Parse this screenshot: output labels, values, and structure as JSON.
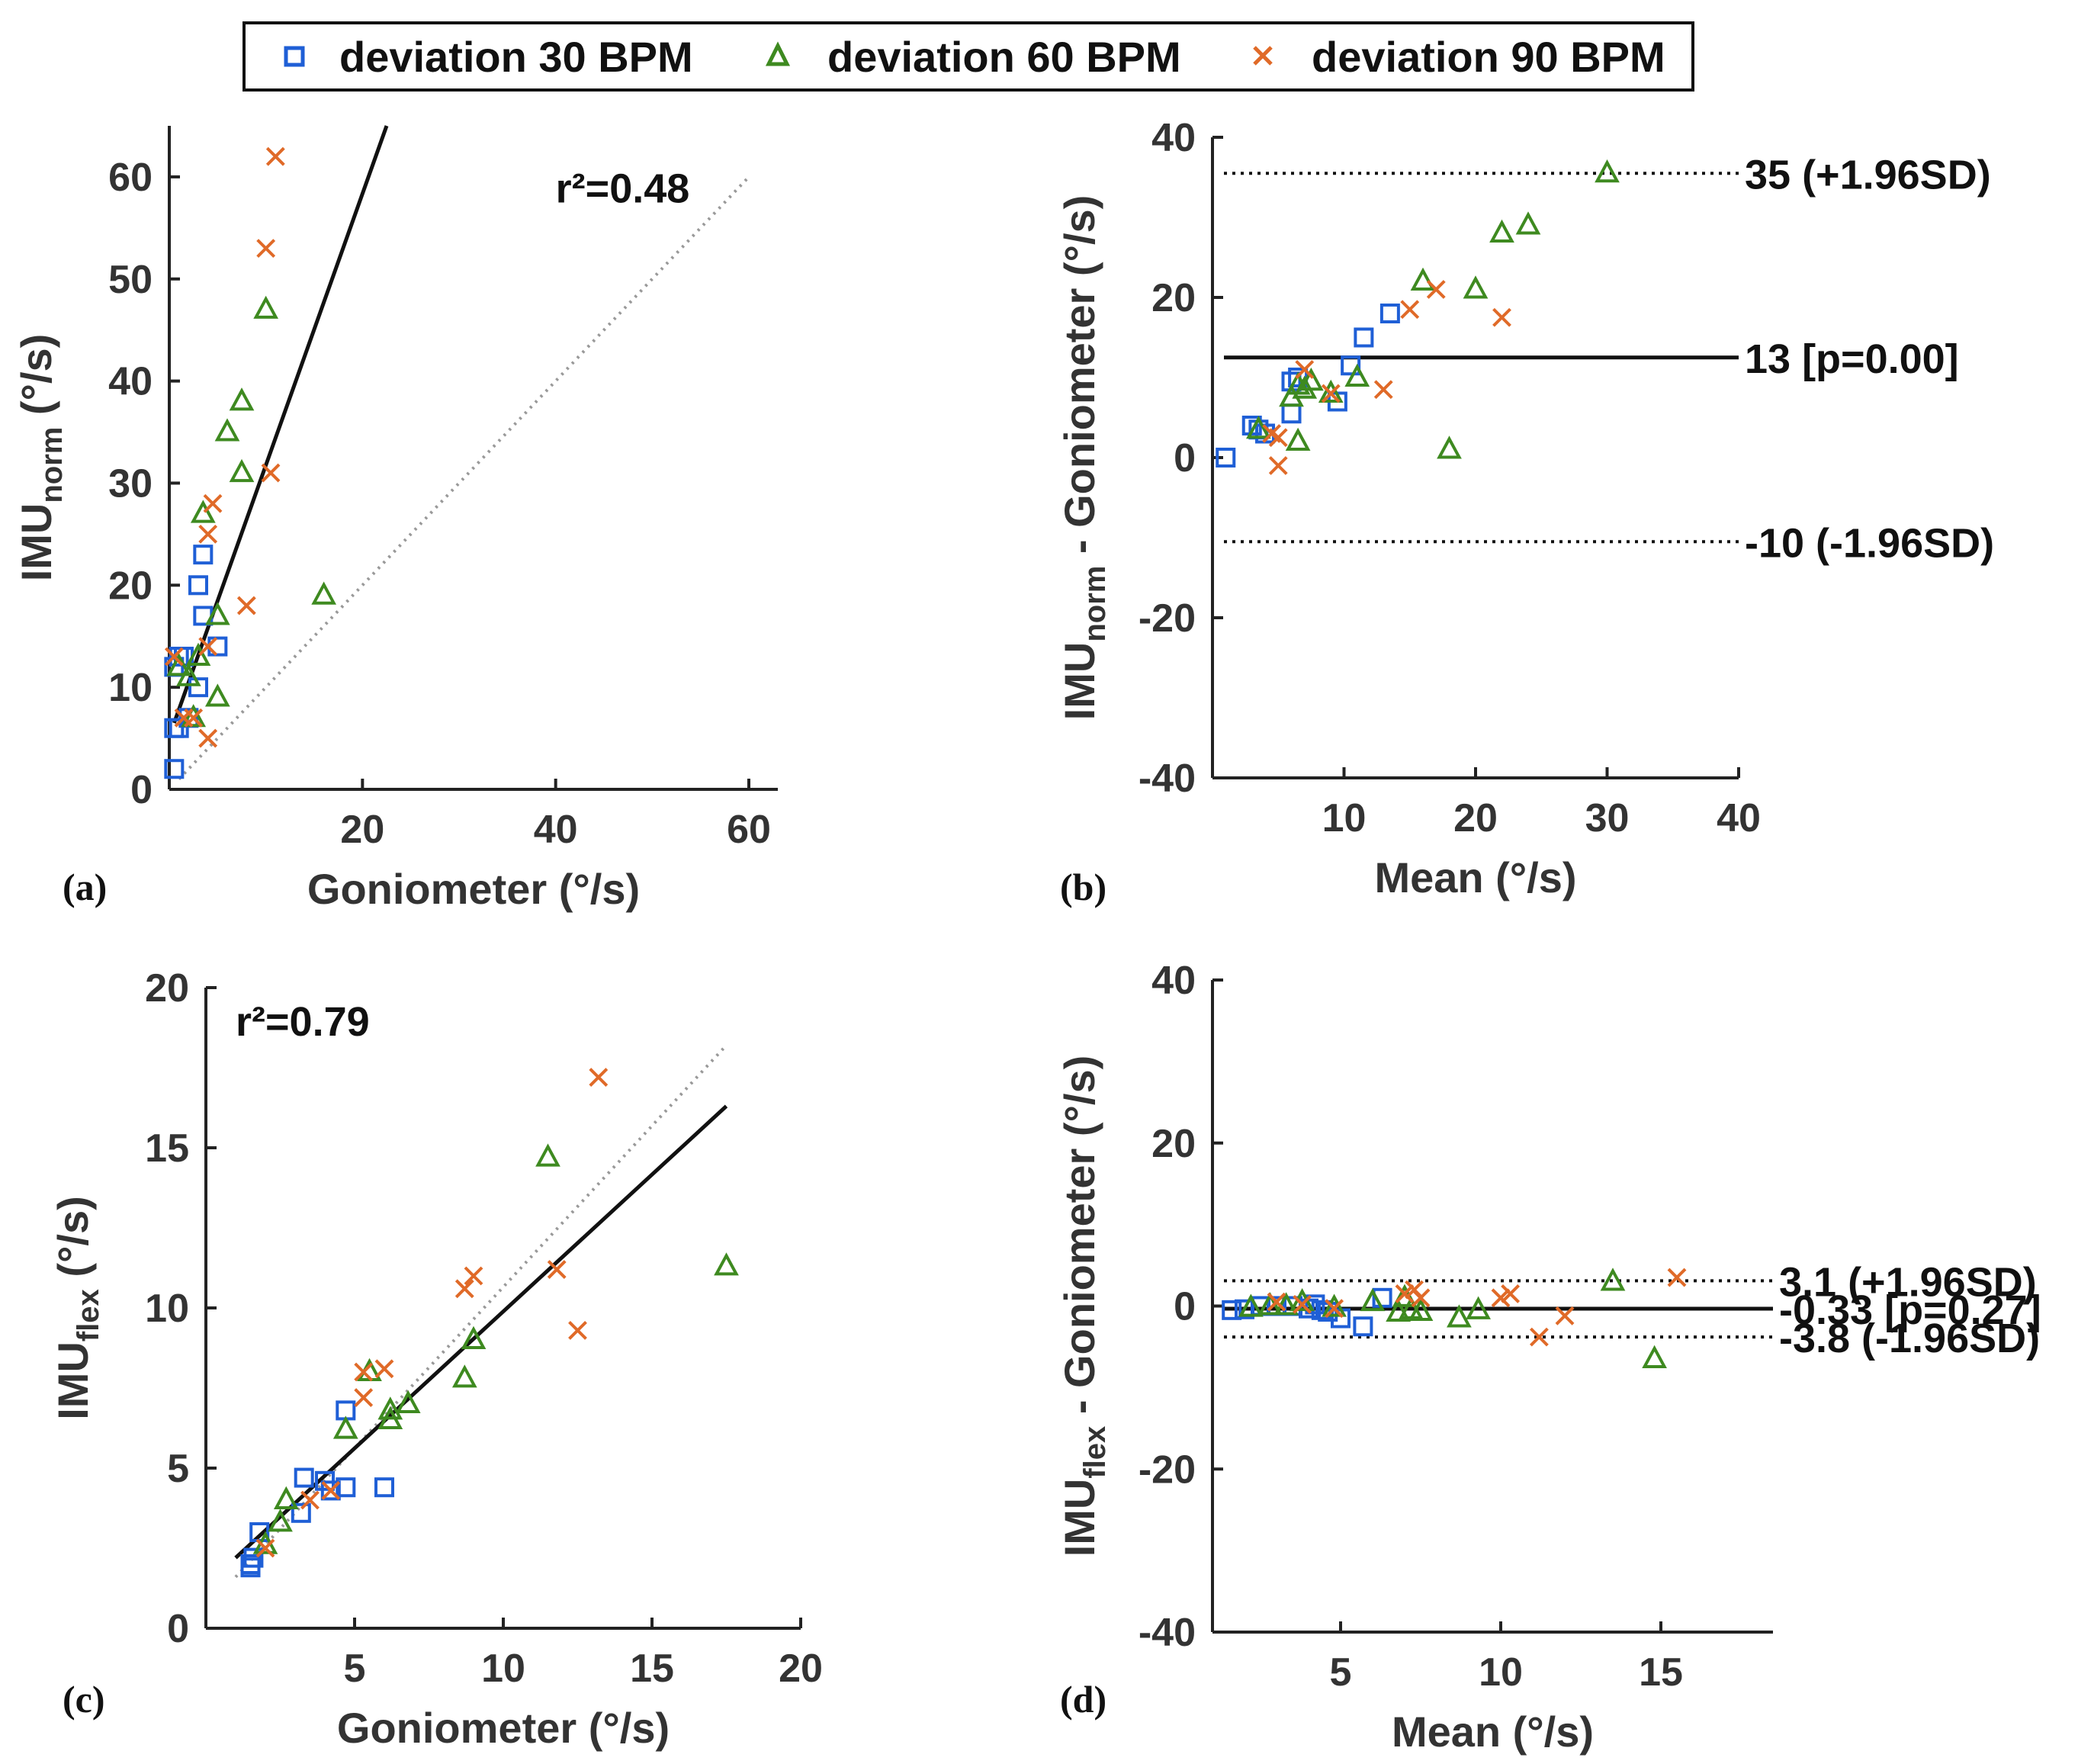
{
  "legend": {
    "entries": [
      {
        "label": "deviation 30 BPM",
        "marker": "square",
        "color": "#1f5fd6"
      },
      {
        "label": "deviation 60 BPM",
        "marker": "triangle",
        "color": "#3e8a20"
      },
      {
        "label": "deviation 90 BPM",
        "marker": "x",
        "color": "#e06a28"
      }
    ]
  },
  "panels": {
    "a": {
      "label": "(a)"
    },
    "b": {
      "label": "(b)"
    },
    "c": {
      "label": "(c)"
    },
    "d": {
      "label": "(d)"
    }
  },
  "chart_data": [
    {
      "id": "a",
      "type": "scatter",
      "xlabel": "Goniometer (°/s)",
      "ylabel_main": "IMU",
      "ylabel_sub": "norm",
      "ylabel_unit": " (°/s)",
      "xlim": [
        0,
        63
      ],
      "ylim": [
        0,
        65
      ],
      "xticks": [
        20,
        40,
        60
      ],
      "yticks": [
        0,
        10,
        20,
        30,
        40,
        50,
        60
      ],
      "annotation": "r²=0.48",
      "fit_line": {
        "x": [
          0.5,
          22.5
        ],
        "y": [
          6.5,
          65
        ]
      },
      "identity_line": {
        "x": [
          1,
          60
        ],
        "y": [
          1,
          60
        ]
      },
      "series": [
        {
          "name": "deviation 30 BPM",
          "points": [
            [
              0.5,
              2
            ],
            [
              0.5,
              6
            ],
            [
              0.5,
              12
            ],
            [
              1,
              6
            ],
            [
              1,
              13
            ],
            [
              3,
              10
            ],
            [
              3,
              20
            ],
            [
              3.5,
              17
            ],
            [
              3.5,
              23
            ],
            [
              5,
              14
            ],
            [
              2,
              7
            ],
            [
              1.5,
              13
            ]
          ]
        },
        {
          "name": "deviation 60 BPM",
          "points": [
            [
              1,
              12
            ],
            [
              2,
              11
            ],
            [
              3,
              13
            ],
            [
              3.5,
              27
            ],
            [
              5,
              17
            ],
            [
              5,
              9
            ],
            [
              6,
              35
            ],
            [
              7.5,
              31
            ],
            [
              7.5,
              38
            ],
            [
              10,
              47
            ],
            [
              16,
              19
            ],
            [
              2.5,
              7
            ]
          ]
        },
        {
          "name": "deviation 90 BPM",
          "points": [
            [
              0.5,
              13
            ],
            [
              1.5,
              7
            ],
            [
              2.5,
              7
            ],
            [
              4,
              14
            ],
            [
              4,
              25
            ],
            [
              4.5,
              28
            ],
            [
              4,
              5
            ],
            [
              8,
              18
            ],
            [
              10,
              53
            ],
            [
              10.5,
              31
            ],
            [
              11,
              62
            ]
          ]
        }
      ]
    },
    {
      "id": "b",
      "type": "scatter",
      "xlabel": "Mean (°/s)",
      "ylabel_main": "IMU",
      "ylabel_sub": "norm",
      "ylabel_unit": " - Goniometer (°/s)",
      "xlim": [
        0,
        40
      ],
      "ylim": [
        -40,
        40
      ],
      "xticks": [
        10,
        20,
        30,
        40
      ],
      "yticks": [
        -40,
        -20,
        0,
        20,
        40
      ],
      "lines": [
        {
          "y": 35.5,
          "style": "dotted",
          "label": "35 (+1.96SD)"
        },
        {
          "y": 12.5,
          "style": "solid",
          "label": "13 [p=0.00]"
        },
        {
          "y": -10.5,
          "style": "dotted",
          "label": "-10 (-1.96SD)"
        }
      ],
      "series": [
        {
          "name": "deviation 30 BPM",
          "points": [
            [
              1,
              0
            ],
            [
              3,
              4
            ],
            [
              3.5,
              3.5
            ],
            [
              6,
              5.5
            ],
            [
              6,
              9.5
            ],
            [
              6.5,
              10
            ],
            [
              9.5,
              7
            ],
            [
              10.5,
              11.5
            ],
            [
              11.5,
              15
            ],
            [
              13.5,
              18
            ],
            [
              4,
              3
            ]
          ]
        },
        {
          "name": "deviation 60 BPM",
          "points": [
            [
              3.5,
              3.5
            ],
            [
              6,
              7.5
            ],
            [
              6.5,
              2
            ],
            [
              6.5,
              9
            ],
            [
              7.5,
              9.5
            ],
            [
              9,
              8
            ],
            [
              11,
              10
            ],
            [
              16,
              22
            ],
            [
              18,
              1
            ],
            [
              20,
              21
            ],
            [
              22,
              28
            ],
            [
              24,
              29
            ],
            [
              30,
              35.5
            ],
            [
              7,
              8.5
            ]
          ]
        },
        {
          "name": "deviation 90 BPM",
          "points": [
            [
              4.5,
              3
            ],
            [
              5,
              -1
            ],
            [
              7,
              11
            ],
            [
              9,
              8
            ],
            [
              13,
              8.5
            ],
            [
              15,
              18.5
            ],
            [
              17,
              21
            ],
            [
              22,
              17.5
            ],
            [
              5,
              2.5
            ]
          ]
        }
      ]
    },
    {
      "id": "c",
      "type": "scatter",
      "xlabel": "Goniometer (°/s)",
      "ylabel_main": "IMU",
      "ylabel_sub": "flex",
      "ylabel_unit": " (°/s)",
      "xlim": [
        0,
        20
      ],
      "ylim": [
        0,
        20
      ],
      "xticks": [
        5,
        10,
        15,
        20
      ],
      "yticks": [
        0,
        5,
        10,
        15,
        20
      ],
      "annotation": "r²=0.79",
      "fit_line": {
        "x": [
          1,
          17.5
        ],
        "y": [
          2.2,
          16.3
        ]
      },
      "identity_line": {
        "x": [
          1,
          17.5
        ],
        "y": [
          1.6,
          18.2
        ]
      },
      "series": [
        {
          "name": "deviation 30 BPM",
          "points": [
            [
              1.5,
              2
            ],
            [
              1.6,
              2.2
            ],
            [
              1.8,
              3
            ],
            [
              3.2,
              3.6
            ],
            [
              3.3,
              4.7
            ],
            [
              4,
              4.6
            ],
            [
              4.2,
              4.3
            ],
            [
              4.7,
              4.4
            ],
            [
              4.7,
              6.8
            ],
            [
              6,
              4.4
            ],
            [
              1.5,
              1.9
            ]
          ]
        },
        {
          "name": "deviation 60 BPM",
          "points": [
            [
              2,
              2.6
            ],
            [
              2.5,
              3.3
            ],
            [
              2.7,
              4
            ],
            [
              4.7,
              6.2
            ],
            [
              5.5,
              8
            ],
            [
              6.2,
              6.5
            ],
            [
              6.2,
              6.8
            ],
            [
              6.8,
              7
            ],
            [
              8.7,
              7.8
            ],
            [
              9,
              9
            ],
            [
              11.5,
              14.7
            ],
            [
              17.5,
              11.3
            ]
          ]
        },
        {
          "name": "deviation 90 BPM",
          "points": [
            [
              2,
              2.5
            ],
            [
              3.5,
              4
            ],
            [
              4.2,
              4.3
            ],
            [
              5.3,
              7.2
            ],
            [
              5.3,
              8
            ],
            [
              6,
              8.1
            ],
            [
              8.7,
              10.6
            ],
            [
              9,
              11
            ],
            [
              11.8,
              11.2
            ],
            [
              12.5,
              9.3
            ],
            [
              13.2,
              17.2
            ]
          ]
        }
      ]
    },
    {
      "id": "d",
      "type": "scatter",
      "xlabel": "Mean (°/s)",
      "ylabel_main": "IMU",
      "ylabel_sub": "flex",
      "ylabel_unit": " - Goniometer (°/s)",
      "xlim": [
        1,
        18.5
      ],
      "ylim": [
        -40,
        40
      ],
      "xticks": [
        5,
        10,
        15
      ],
      "yticks": [
        -40,
        -20,
        0,
        20,
        40
      ],
      "lines": [
        {
          "y": 3.1,
          "style": "dotted",
          "label": "3.1 (+1.96SD)"
        },
        {
          "y": -0.33,
          "style": "solid",
          "label": "-0.33 [p=0.27]"
        },
        {
          "y": -3.8,
          "style": "dotted",
          "label": "-3.8 (-1.96SD)"
        }
      ],
      "series": [
        {
          "name": "deviation 30 BPM",
          "points": [
            [
              1.6,
              -0.5
            ],
            [
              2,
              -0.4
            ],
            [
              2.5,
              0
            ],
            [
              3,
              0
            ],
            [
              3.5,
              0
            ],
            [
              4,
              -0.3
            ],
            [
              4.2,
              0.2
            ],
            [
              4.4,
              -0.5
            ],
            [
              4.6,
              -0.7
            ],
            [
              5,
              -1.5
            ],
            [
              5.7,
              -2.5
            ],
            [
              6.3,
              1
            ]
          ]
        },
        {
          "name": "deviation 60 BPM",
          "points": [
            [
              2.2,
              -0.2
            ],
            [
              2.8,
              0
            ],
            [
              3.3,
              0
            ],
            [
              3.8,
              0.5
            ],
            [
              4.8,
              -0.2
            ],
            [
              6,
              0.5
            ],
            [
              6.8,
              -0.8
            ],
            [
              7,
              1
            ],
            [
              7.2,
              -0.5
            ],
            [
              7.5,
              -0.7
            ],
            [
              8.7,
              -1.5
            ],
            [
              9.3,
              -0.5
            ],
            [
              13.5,
              3
            ],
            [
              14.8,
              -6.5
            ]
          ]
        },
        {
          "name": "deviation 90 BPM",
          "points": [
            [
              3,
              0.5
            ],
            [
              3.8,
              0.2
            ],
            [
              4.8,
              -0.3
            ],
            [
              7,
              1.5
            ],
            [
              7.5,
              1
            ],
            [
              7.3,
              2
            ],
            [
              10,
              1
            ],
            [
              10.3,
              1.5
            ],
            [
              11.2,
              -3.8
            ],
            [
              12,
              -1.2
            ],
            [
              15.5,
              3.5
            ]
          ]
        }
      ]
    }
  ]
}
